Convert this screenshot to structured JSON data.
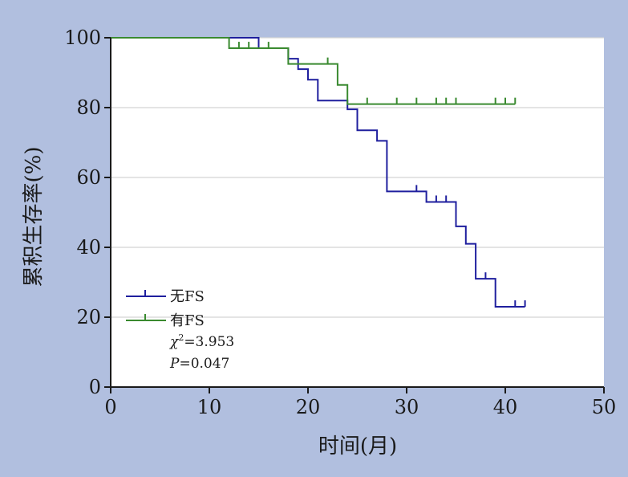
{
  "chart_data": {
    "type": "line",
    "subtype": "kaplan-meier step plot",
    "title": "",
    "xlabel": "时间(月)",
    "ylabel": "累积生存率(%)",
    "xlim": [
      0,
      50
    ],
    "ylim": [
      0,
      100
    ],
    "x_ticks": [
      0,
      10,
      20,
      30,
      40,
      50
    ],
    "y_ticks": [
      0,
      20,
      40,
      60,
      80,
      100
    ],
    "grid": "horizontal",
    "legend_position": "bottom-left",
    "series": [
      {
        "name": "无FS",
        "color": "#1f1f9e",
        "steps": [
          [
            0,
            100
          ],
          [
            15,
            97
          ],
          [
            18,
            94
          ],
          [
            19,
            91
          ],
          [
            20,
            88
          ],
          [
            21,
            82
          ],
          [
            24,
            79.5
          ],
          [
            25,
            73.5
          ],
          [
            27,
            70.5
          ],
          [
            28,
            56
          ],
          [
            32,
            53
          ],
          [
            35,
            46
          ],
          [
            36,
            41
          ],
          [
            37,
            31
          ],
          [
            39,
            23
          ],
          [
            42,
            23
          ]
        ],
        "censored": [
          [
            31,
            56
          ],
          [
            33,
            53
          ],
          [
            34,
            53
          ],
          [
            38,
            31
          ],
          [
            41,
            23
          ],
          [
            42,
            23
          ]
        ]
      },
      {
        "name": "有FS",
        "color": "#3a8a30",
        "steps": [
          [
            0,
            100
          ],
          [
            12,
            97
          ],
          [
            18,
            92.5
          ],
          [
            23,
            86.5
          ],
          [
            24,
            81
          ],
          [
            41,
            81
          ]
        ],
        "censored": [
          [
            13,
            97
          ],
          [
            14,
            97
          ],
          [
            16,
            97
          ],
          [
            22,
            92.5
          ],
          [
            26,
            81
          ],
          [
            29,
            81
          ],
          [
            31,
            81
          ],
          [
            33,
            81
          ],
          [
            34,
            81
          ],
          [
            35,
            81
          ],
          [
            39,
            81
          ],
          [
            40,
            81
          ],
          [
            41,
            81
          ]
        ]
      }
    ],
    "annotations": {
      "chi_symbol": "χ",
      "chi_sup": "2",
      "chi_value": "=3.953",
      "p_symbol": "P",
      "p_value": "=0.047"
    }
  }
}
